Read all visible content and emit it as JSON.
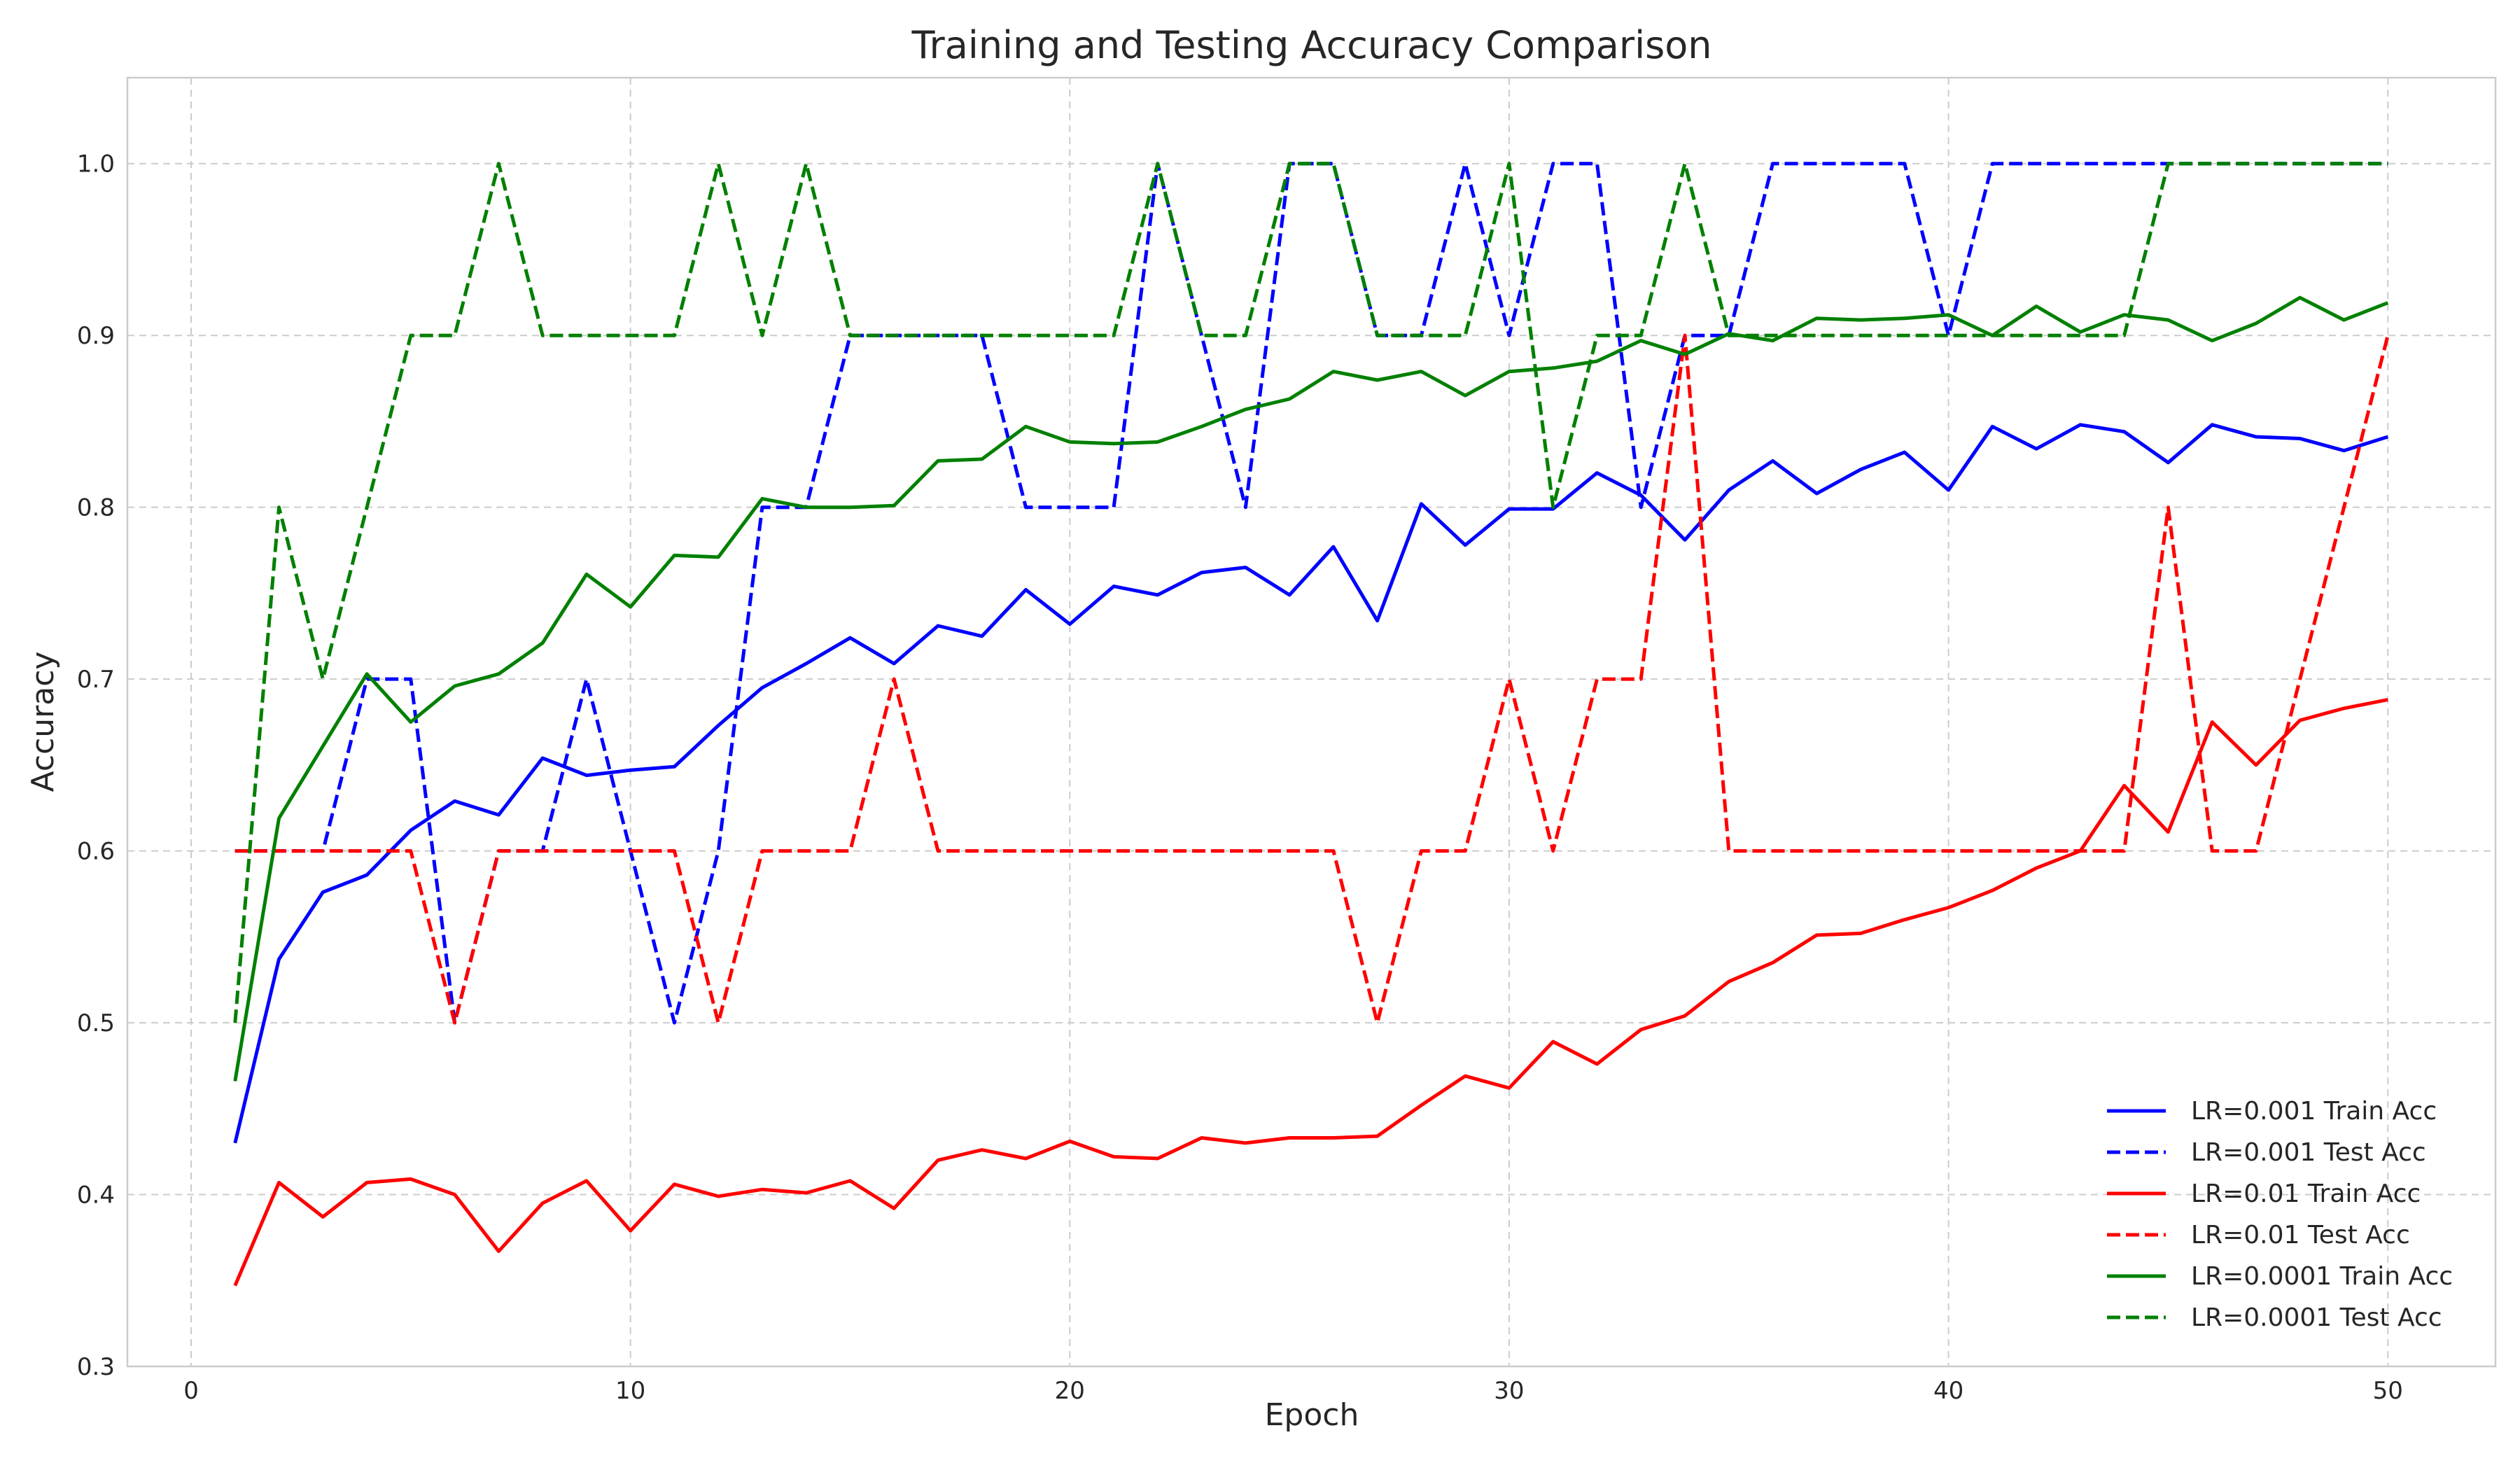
{
  "chart_data": {
    "type": "line",
    "title": "Training and Testing Accuracy Comparison",
    "xlabel": "Epoch",
    "ylabel": "Accuracy",
    "xlim": [
      -1.45,
      52.45
    ],
    "ylim": [
      0.3,
      1.05
    ],
    "xticks": [
      0,
      10,
      20,
      30,
      40,
      50
    ],
    "yticks": [
      0.3,
      0.4,
      0.5,
      0.6,
      0.7,
      0.8,
      0.9,
      1.0
    ],
    "xtick_labels": [
      "0",
      "10",
      "20",
      "30",
      "40",
      "50"
    ],
    "ytick_labels": [
      "0.3",
      "0.4",
      "0.5",
      "0.6",
      "0.7",
      "0.8",
      "0.9",
      "1.0"
    ],
    "grid": true,
    "legend_position": "lower-right",
    "x": [
      1,
      2,
      3,
      4,
      5,
      6,
      7,
      8,
      9,
      10,
      11,
      12,
      13,
      14,
      15,
      16,
      17,
      18,
      19,
      20,
      21,
      22,
      23,
      24,
      25,
      26,
      27,
      28,
      29,
      30,
      31,
      32,
      33,
      34,
      35,
      36,
      37,
      38,
      39,
      40,
      41,
      42,
      43,
      44,
      45,
      46,
      47,
      48,
      49,
      50
    ],
    "series": [
      {
        "name": "LR=0.001 Train Acc",
        "color": "#0000ff",
        "dash": "solid",
        "values": [
          0.43,
          0.537,
          0.576,
          0.586,
          0.612,
          0.629,
          0.621,
          0.654,
          0.644,
          0.647,
          0.649,
          0.673,
          0.695,
          0.709,
          0.724,
          0.709,
          0.731,
          0.725,
          0.752,
          0.732,
          0.754,
          0.749,
          0.762,
          0.765,
          0.749,
          0.777,
          0.734,
          0.802,
          0.778,
          0.799,
          0.799,
          0.82,
          0.807,
          0.781,
          0.81,
          0.827,
          0.808,
          0.822,
          0.832,
          0.81,
          0.847,
          0.834,
          0.848,
          0.844,
          0.826,
          0.848,
          0.841,
          0.84,
          0.833,
          0.841
        ]
      },
      {
        "name": "LR=0.001 Test Acc",
        "color": "#0000ff",
        "dash": "dashed",
        "values": [
          0.6,
          0.6,
          0.6,
          0.7,
          0.7,
          0.5,
          0.6,
          0.6,
          0.7,
          0.6,
          0.5,
          0.6,
          0.8,
          0.8,
          0.9,
          0.9,
          0.9,
          0.9,
          0.8,
          0.8,
          0.8,
          1.0,
          0.9,
          0.8,
          1.0,
          1.0,
          0.9,
          0.9,
          1.0,
          0.9,
          1.0,
          1.0,
          0.8,
          0.9,
          0.9,
          1.0,
          1.0,
          1.0,
          1.0,
          0.9,
          1.0,
          1.0,
          1.0,
          1.0,
          1.0,
          1.0,
          1.0,
          1.0,
          1.0,
          1.0
        ]
      },
      {
        "name": "LR=0.01 Train Acc",
        "color": "#ff0000",
        "dash": "solid",
        "values": [
          0.347,
          0.407,
          0.387,
          0.407,
          0.409,
          0.4,
          0.367,
          0.395,
          0.408,
          0.379,
          0.406,
          0.399,
          0.403,
          0.401,
          0.408,
          0.392,
          0.42,
          0.426,
          0.421,
          0.431,
          0.422,
          0.421,
          0.433,
          0.43,
          0.433,
          0.433,
          0.434,
          0.452,
          0.469,
          0.462,
          0.489,
          0.476,
          0.496,
          0.504,
          0.524,
          0.535,
          0.551,
          0.552,
          0.56,
          0.567,
          0.577,
          0.59,
          0.6,
          0.638,
          0.611,
          0.675,
          0.65,
          0.676,
          0.683,
          0.688
        ]
      },
      {
        "name": "LR=0.01 Test Acc",
        "color": "#ff0000",
        "dash": "dashed",
        "values": [
          0.6,
          0.6,
          0.6,
          0.6,
          0.6,
          0.5,
          0.6,
          0.6,
          0.6,
          0.6,
          0.6,
          0.5,
          0.6,
          0.6,
          0.6,
          0.7,
          0.6,
          0.6,
          0.6,
          0.6,
          0.6,
          0.6,
          0.6,
          0.6,
          0.6,
          0.6,
          0.5,
          0.6,
          0.6,
          0.7,
          0.6,
          0.7,
          0.7,
          0.9,
          0.6,
          0.6,
          0.6,
          0.6,
          0.6,
          0.6,
          0.6,
          0.6,
          0.6,
          0.6,
          0.8,
          0.6,
          0.6,
          0.7,
          0.8,
          0.9
        ]
      },
      {
        "name": "LR=0.0001 Train Acc",
        "color": "#008000",
        "dash": "solid",
        "values": [
          0.466,
          0.619,
          0.661,
          0.703,
          0.675,
          0.696,
          0.703,
          0.721,
          0.761,
          0.742,
          0.772,
          0.771,
          0.805,
          0.8,
          0.8,
          0.801,
          0.827,
          0.828,
          0.847,
          0.838,
          0.837,
          0.838,
          0.847,
          0.857,
          0.863,
          0.879,
          0.874,
          0.879,
          0.865,
          0.879,
          0.881,
          0.885,
          0.897,
          0.889,
          0.901,
          0.897,
          0.91,
          0.909,
          0.91,
          0.912,
          0.9,
          0.917,
          0.902,
          0.912,
          0.909,
          0.897,
          0.907,
          0.922,
          0.909,
          0.919
        ]
      },
      {
        "name": "LR=0.0001 Test Acc",
        "color": "#008000",
        "dash": "dashed",
        "values": [
          0.5,
          0.8,
          0.7,
          0.8,
          0.9,
          0.9,
          1.0,
          0.9,
          0.9,
          0.9,
          0.9,
          1.0,
          0.9,
          1.0,
          0.9,
          0.9,
          0.9,
          0.9,
          0.9,
          0.9,
          0.9,
          1.0,
          0.9,
          0.9,
          1.0,
          1.0,
          0.9,
          0.9,
          0.9,
          1.0,
          0.8,
          0.9,
          0.9,
          1.0,
          0.9,
          0.9,
          0.9,
          0.9,
          0.9,
          0.9,
          0.9,
          0.9,
          0.9,
          0.9,
          1.0,
          1.0,
          1.0,
          1.0,
          1.0,
          1.0
        ]
      }
    ]
  }
}
